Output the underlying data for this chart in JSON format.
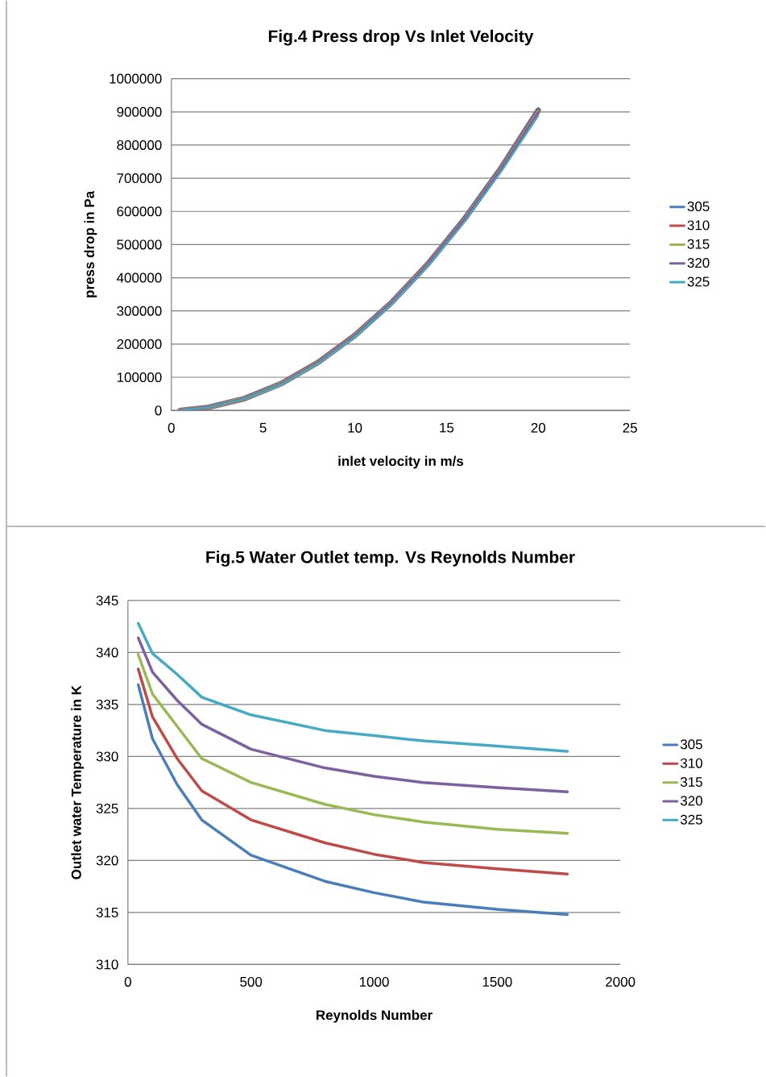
{
  "chart_data": [
    {
      "type": "line",
      "title": "Fig.4 Press drop Vs  Inlet Velocity",
      "xlabel": "inlet velocity in m/s",
      "ylabel": "press drop in Pa",
      "x": [
        0.5,
        2,
        4,
        6,
        8,
        10,
        12,
        14,
        16,
        18,
        20
      ],
      "series": [
        {
          "name": "305",
          "color": "#4a7ebb",
          "values": [
            0,
            9000,
            36000,
            81000,
            145000,
            226000,
            325000,
            443000,
            579000,
            733000,
            905000
          ]
        },
        {
          "name": "310",
          "color": "#be4b48",
          "values": [
            0,
            9000,
            36000,
            81000,
            145000,
            226000,
            325000,
            442000,
            577000,
            731000,
            902000
          ]
        },
        {
          "name": "315",
          "color": "#98b954",
          "values": [
            0,
            9000,
            36000,
            80000,
            144000,
            225000,
            324000,
            441000,
            576000,
            729000,
            899000
          ]
        },
        {
          "name": "320",
          "color": "#7d60a0",
          "values": [
            0,
            9000,
            36000,
            80000,
            144000,
            225000,
            324000,
            441000,
            576000,
            729000,
            898000
          ]
        },
        {
          "name": "325",
          "color": "#46aac5",
          "values": [
            0,
            9000,
            35000,
            79000,
            142000,
            222000,
            320000,
            436000,
            570000,
            722000,
            888000
          ]
        }
      ],
      "xlim": [
        0,
        25
      ],
      "ylim": [
        0,
        1000000
      ],
      "xticks": [
        0,
        5,
        10,
        15,
        20,
        25
      ],
      "yticks": [
        0,
        100000,
        200000,
        300000,
        400000,
        500000,
        600000,
        700000,
        800000,
        900000,
        1000000
      ],
      "grid": "y",
      "legend": "right"
    },
    {
      "type": "line",
      "title": "Fig.5 Water Outlet temp. Vs Reynolds Number",
      "xlabel": "Reynolds Number",
      "ylabel": "Outlet water Temperature in K",
      "x": [
        42,
        100,
        200,
        300,
        500,
        800,
        1000,
        1200,
        1500,
        1785
      ],
      "series": [
        {
          "name": "305",
          "color": "#4a7ebb",
          "values": [
            336.9,
            331.7,
            327.3,
            323.9,
            320.5,
            318.0,
            316.9,
            316.0,
            315.3,
            314.8
          ]
        },
        {
          "name": "310",
          "color": "#be4b48",
          "values": [
            338.4,
            333.8,
            329.8,
            326.7,
            323.9,
            321.7,
            320.6,
            319.8,
            319.2,
            318.7
          ]
        },
        {
          "name": "315",
          "color": "#98b954",
          "values": [
            339.8,
            336.0,
            332.9,
            329.8,
            327.5,
            325.4,
            324.4,
            323.7,
            323.0,
            322.6
          ]
        },
        {
          "name": "320",
          "color": "#7d60a0",
          "values": [
            341.4,
            338.1,
            335.4,
            333.1,
            330.7,
            328.9,
            328.1,
            327.5,
            327.0,
            326.6
          ]
        },
        {
          "name": "325",
          "color": "#46aac5",
          "values": [
            342.8,
            339.9,
            337.9,
            335.7,
            334.0,
            332.5,
            332.0,
            331.5,
            331.0,
            330.5
          ]
        }
      ],
      "xlim": [
        0,
        2000
      ],
      "ylim": [
        310,
        345
      ],
      "xticks": [
        0,
        500,
        1000,
        1500,
        2000
      ],
      "yticks": [
        310,
        315,
        320,
        325,
        330,
        335,
        340,
        345
      ],
      "grid": "y",
      "legend": "right"
    }
  ]
}
